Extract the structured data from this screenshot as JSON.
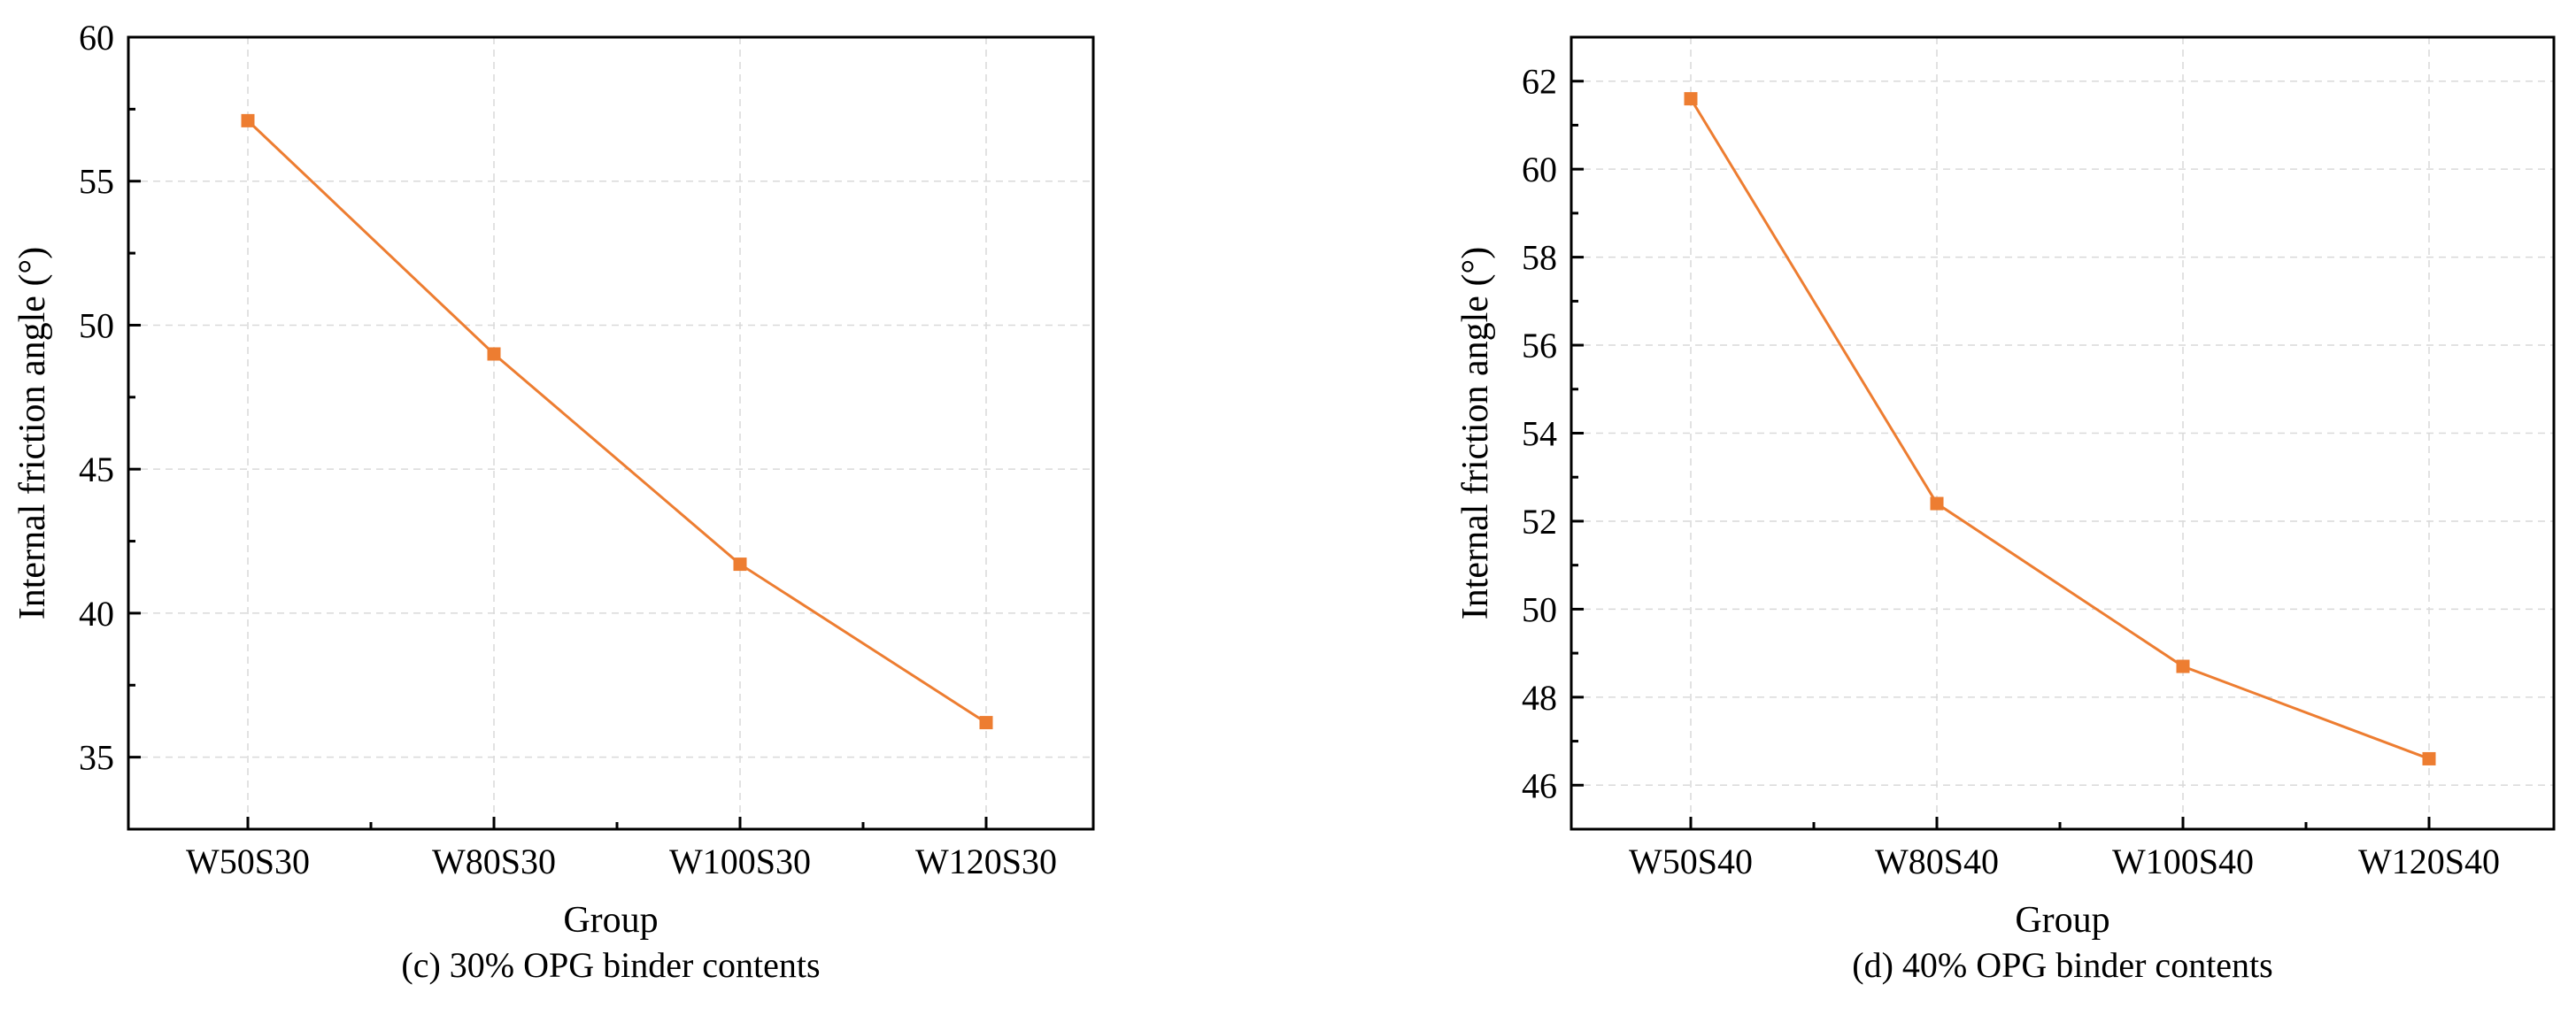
{
  "chart_data": [
    {
      "type": "line",
      "title": "",
      "caption": "(c) 30% OPG binder contents",
      "xlabel": "Group",
      "ylabel": "Internal friction angle (°)",
      "categories": [
        "W50S30",
        "W80S30",
        "W100S30",
        "W120S30"
      ],
      "ylim": [
        32.5,
        60
      ],
      "yticks": [
        35,
        40,
        45,
        50,
        55,
        60
      ],
      "grid": true,
      "series": [
        {
          "name": "Internal friction angle",
          "color": "#ed7d31",
          "marker": "square",
          "values": [
            57.1,
            49.0,
            41.7,
            36.2
          ]
        }
      ]
    },
    {
      "type": "line",
      "title": "",
      "caption": "(d) 40% OPG binder contents",
      "xlabel": "Group",
      "ylabel": "Internal friction angle (°)",
      "categories": [
        "W50S40",
        "W80S40",
        "W100S40",
        "W120S40"
      ],
      "ylim": [
        45,
        63
      ],
      "yticks": [
        46,
        48,
        50,
        52,
        54,
        56,
        58,
        60,
        62
      ],
      "grid": true,
      "series": [
        {
          "name": "Internal friction angle",
          "color": "#ed7d31",
          "marker": "square",
          "values": [
            61.6,
            52.4,
            48.7,
            46.6
          ]
        }
      ]
    }
  ]
}
